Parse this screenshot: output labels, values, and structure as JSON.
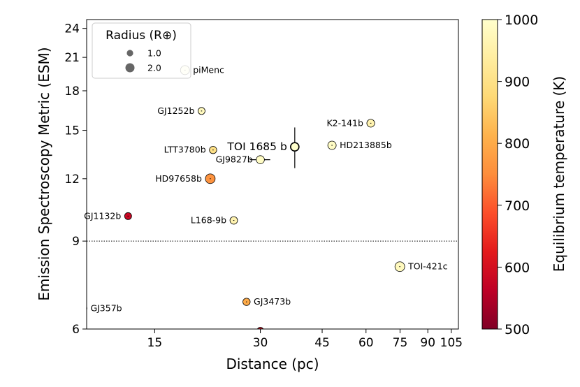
{
  "chart_data": {
    "type": "scatter",
    "xlabel": "Distance (pc)",
    "ylabel": "Emission Spectroscopy Metric (ESM)",
    "x_scale": "log",
    "y_scale": "log",
    "xlim": [
      9.6,
      110
    ],
    "ylim": [
      6,
      25
    ],
    "x_ticks": [
      15,
      30,
      45,
      60,
      75,
      90,
      105
    ],
    "x_tick_labels": [
      "15",
      "30",
      "45",
      "60",
      "75",
      "90",
      "105"
    ],
    "y_ticks": [
      6,
      9,
      12,
      15,
      18,
      21,
      24
    ],
    "y_tick_labels": [
      "6",
      "9",
      "12",
      "15",
      "18",
      "21",
      "24"
    ],
    "threshold_line": 9,
    "colorbar": {
      "label": "Equilibrium temperature (K)",
      "min": 500,
      "max": 1000,
      "ticks": [
        500,
        600,
        700,
        800,
        900,
        1000
      ],
      "tick_labels": [
        "500",
        "600",
        "700",
        "800",
        "900",
        "1000"
      ],
      "colormap": [
        "#800026",
        "#bd0026",
        "#e31a1c",
        "#fc4e2a",
        "#fd8d3c",
        "#feb24c",
        "#fed976",
        "#ffeda0",
        "#ffffcc"
      ]
    },
    "legend": {
      "title": "Radius (R⊕)",
      "entries": [
        {
          "label": "1.0",
          "radius_re": 1.0
        },
        {
          "label": "2.0",
          "radius_re": 2.0
        }
      ],
      "position": "upper-left"
    },
    "points": [
      {
        "name": "piMenc",
        "distance": 18.3,
        "esm": 19.8,
        "teq": 1000,
        "radius": 2.0,
        "label_side": "right",
        "xerr": 0,
        "yerr": 0
      },
      {
        "name": "GJ1252b",
        "distance": 20.4,
        "esm": 16.4,
        "teq": 980,
        "radius": 1.2,
        "label_side": "left",
        "xerr": 0,
        "yerr": 0
      },
      {
        "name": "K2-141b",
        "distance": 61.9,
        "esm": 15.5,
        "teq": 960,
        "radius": 1.5,
        "label_side": "left",
        "xerr": 0,
        "yerr": 0
      },
      {
        "name": "HD213885b",
        "distance": 48.0,
        "esm": 14.0,
        "teq": 990,
        "radius": 1.7,
        "label_side": "right",
        "xerr": 0,
        "yerr": 0
      },
      {
        "name": "TOI 1685 b",
        "distance": 37.6,
        "esm": 13.9,
        "teq": 1000,
        "radius": 1.7,
        "label_side": "left",
        "big_label": true,
        "xerr": 0,
        "yerr": 1.3
      },
      {
        "name": "LTT3780b",
        "distance": 22.0,
        "esm": 13.7,
        "teq": 900,
        "radius": 1.3,
        "label_side": "left",
        "xerr": 0,
        "yerr": 0
      },
      {
        "name": "GJ9827b",
        "distance": 30.0,
        "esm": 13.1,
        "teq": 990,
        "radius": 1.6,
        "label_side": "left",
        "xerr": 2.0,
        "yerr": 0
      },
      {
        "name": "HD97658b",
        "distance": 21.6,
        "esm": 12.0,
        "teq": 760,
        "radius": 2.3,
        "label_side": "left",
        "xerr": 0,
        "yerr": 0
      },
      {
        "name": "GJ1132b",
        "distance": 12.6,
        "esm": 10.1,
        "teq": 580,
        "radius": 1.2,
        "label_side": "left",
        "xerr": 0,
        "yerr": 0
      },
      {
        "name": "L168-9b",
        "distance": 25.2,
        "esm": 9.9,
        "teq": 960,
        "radius": 1.4,
        "label_side": "left",
        "xerr": 0,
        "yerr": 0
      },
      {
        "name": "TOI-421c",
        "distance": 74.9,
        "esm": 8.0,
        "teq": 980,
        "radius": 2.3,
        "label_side": "right",
        "xerr": 0,
        "yerr": 0
      },
      {
        "name": "GJ3473b",
        "distance": 27.4,
        "esm": 6.8,
        "teq": 800,
        "radius": 1.3,
        "label_side": "right",
        "xerr": 0,
        "yerr": 0
      },
      {
        "name": "GJ357b",
        "distance": 9.4,
        "esm": 6.6,
        "teq": 530,
        "radius": 1.2,
        "label_side": "right",
        "xerr": 0,
        "yerr": 0
      },
      {
        "name": "",
        "distance": 30.0,
        "esm": 5.95,
        "teq": 600,
        "radius": 1.2,
        "label_side": "none",
        "xerr": 0,
        "yerr": 0
      }
    ]
  }
}
